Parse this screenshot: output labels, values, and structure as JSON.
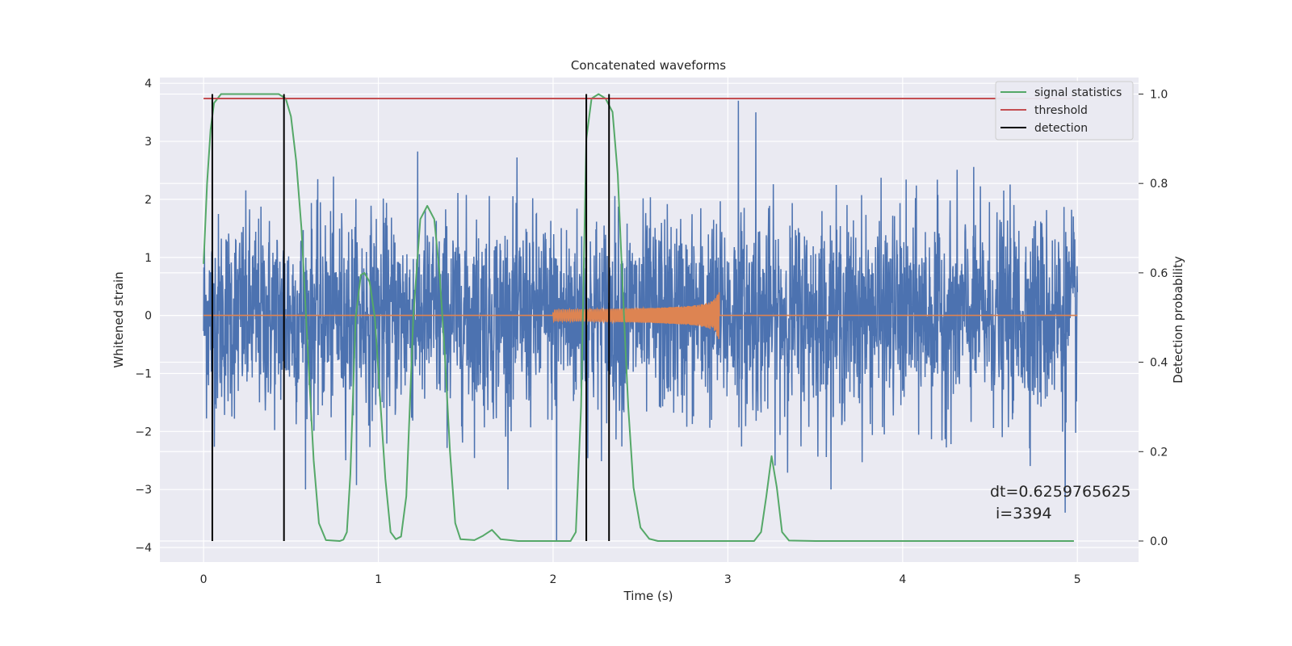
{
  "chart_data": {
    "type": "line",
    "title": "Concatenated waveforms",
    "xlabel": "Time (s)",
    "ylabel": "Whitened strain",
    "y2label": "Detection probability",
    "xlim": [
      -0.25,
      5.35
    ],
    "ylim": [
      -4.25,
      4.1
    ],
    "y2lim": [
      -0.047,
      1.037
    ],
    "xticks": [
      "0",
      "1",
      "2",
      "3",
      "4",
      "5"
    ],
    "yticks": [
      "4",
      "3",
      "2",
      "1",
      "0",
      "−1",
      "−2",
      "−3",
      "−4"
    ],
    "y2ticks": [
      "1.0",
      "0.8",
      "0.6",
      "0.4",
      "0.2",
      "0.0"
    ],
    "grid": true,
    "legend_position": "top-right",
    "background": "#eaeaf2",
    "series": [
      {
        "name": "",
        "color": "#4c72b0",
        "axis": "left",
        "kind": "noise",
        "x_range": [
          0,
          5
        ],
        "typical_amplitude": 0.75,
        "peak_values": [
          [
            0.05,
            -3.5
          ],
          [
            2.02,
            -3.9
          ],
          [
            3.06,
            3.7
          ],
          [
            3.16,
            3.5
          ],
          [
            4.93,
            -3.4
          ]
        ]
      },
      {
        "name": "",
        "color": "#dd8452",
        "axis": "left",
        "kind": "chirp",
        "x_range": [
          0,
          5
        ],
        "chirp_start": 2.0,
        "chirp_end": 2.95,
        "start_amplitude": 0.1,
        "end_amplitude": 0.7
      },
      {
        "name": "signal statistics",
        "color": "#55a868",
        "axis": "right",
        "points": [
          [
            0.0,
            0.62
          ],
          [
            0.02,
            0.8
          ],
          [
            0.04,
            0.92
          ],
          [
            0.06,
            0.98
          ],
          [
            0.1,
            1.0
          ],
          [
            0.3,
            1.0
          ],
          [
            0.43,
            1.0
          ],
          [
            0.47,
            0.99
          ],
          [
            0.5,
            0.95
          ],
          [
            0.53,
            0.85
          ],
          [
            0.56,
            0.7
          ],
          [
            0.6,
            0.4
          ],
          [
            0.63,
            0.18
          ],
          [
            0.66,
            0.04
          ],
          [
            0.7,
            0.002
          ],
          [
            0.78,
            0.0
          ],
          [
            0.8,
            0.003
          ],
          [
            0.82,
            0.02
          ],
          [
            0.84,
            0.15
          ],
          [
            0.87,
            0.5
          ],
          [
            0.9,
            0.595
          ],
          [
            0.92,
            0.6
          ],
          [
            0.95,
            0.58
          ],
          [
            0.98,
            0.5
          ],
          [
            1.01,
            0.32
          ],
          [
            1.04,
            0.14
          ],
          [
            1.07,
            0.02
          ],
          [
            1.1,
            0.004
          ],
          [
            1.13,
            0.01
          ],
          [
            1.16,
            0.1
          ],
          [
            1.2,
            0.5
          ],
          [
            1.24,
            0.72
          ],
          [
            1.28,
            0.75
          ],
          [
            1.32,
            0.72
          ],
          [
            1.35,
            0.6
          ],
          [
            1.38,
            0.42
          ],
          [
            1.41,
            0.2
          ],
          [
            1.44,
            0.04
          ],
          [
            1.47,
            0.004
          ],
          [
            1.55,
            0.002
          ],
          [
            1.6,
            0.012
          ],
          [
            1.65,
            0.025
          ],
          [
            1.7,
            0.004
          ],
          [
            1.8,
            0.0
          ],
          [
            2.0,
            0.0
          ],
          [
            2.1,
            0.0
          ],
          [
            2.13,
            0.02
          ],
          [
            2.16,
            0.3
          ],
          [
            2.19,
            0.9
          ],
          [
            2.22,
            0.99
          ],
          [
            2.26,
            1.0
          ],
          [
            2.3,
            0.99
          ],
          [
            2.34,
            0.96
          ],
          [
            2.37,
            0.82
          ],
          [
            2.4,
            0.55
          ],
          [
            2.43,
            0.3
          ],
          [
            2.46,
            0.12
          ],
          [
            2.5,
            0.03
          ],
          [
            2.55,
            0.005
          ],
          [
            2.6,
            0.0
          ],
          [
            3.15,
            0.0
          ],
          [
            3.19,
            0.02
          ],
          [
            3.22,
            0.1
          ],
          [
            3.25,
            0.19
          ],
          [
            3.28,
            0.12
          ],
          [
            3.31,
            0.02
          ],
          [
            3.35,
            0.001
          ],
          [
            3.5,
            0.0
          ],
          [
            4.98,
            0.0
          ]
        ]
      },
      {
        "name": "threshold",
        "color": "#c44e52",
        "axis": "right",
        "points": [
          [
            0.0,
            0.99
          ],
          [
            4.98,
            0.99
          ]
        ]
      },
      {
        "name": "detection",
        "color": "#000000",
        "axis": "right",
        "vlines": [
          0.05,
          0.46,
          2.19,
          2.32
        ],
        "vline_range": [
          0.0,
          1.0
        ]
      }
    ],
    "annotations": [
      "dt=0.6259765625",
      "i=3394"
    ]
  }
}
